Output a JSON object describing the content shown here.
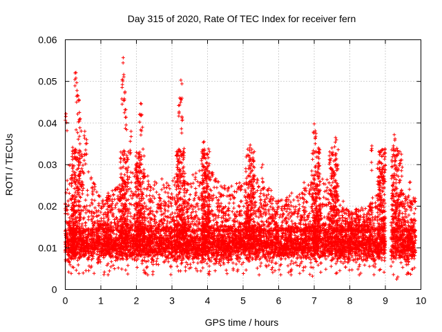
{
  "chart_data": {
    "type": "scatter",
    "title": "Day 315 of 2020, Rate Of TEC Index for receiver fern",
    "xlabel": "GPS time / hours",
    "ylabel": "ROTI / TECUs",
    "xlim": [
      0,
      10
    ],
    "ylim": [
      0,
      0.06
    ],
    "xticks": [
      "0",
      "1",
      "2",
      "3",
      "4",
      "5",
      "6",
      "7",
      "8",
      "9",
      "10"
    ],
    "yticks": [
      "0",
      "0.01",
      "0.02",
      "0.03",
      "0.04",
      "0.05",
      "0.06"
    ],
    "grid": true,
    "marker": "+",
    "color": "#ff0000",
    "data_gap_hours": [
      9.0,
      9.15
    ],
    "baseline_band": {
      "low": 0.005,
      "high": 0.016
    },
    "envelope": [
      {
        "x": 0.0,
        "upper": 0.024
      },
      {
        "x": 0.3,
        "upper": 0.04
      },
      {
        "x": 0.6,
        "upper": 0.03
      },
      {
        "x": 1.0,
        "upper": 0.022
      },
      {
        "x": 1.5,
        "upper": 0.025
      },
      {
        "x": 2.0,
        "upper": 0.03
      },
      {
        "x": 2.5,
        "upper": 0.026
      },
      {
        "x": 3.0,
        "upper": 0.028
      },
      {
        "x": 3.5,
        "upper": 0.027
      },
      {
        "x": 4.0,
        "upper": 0.03
      },
      {
        "x": 4.5,
        "upper": 0.025
      },
      {
        "x": 5.0,
        "upper": 0.026
      },
      {
        "x": 5.5,
        "upper": 0.027
      },
      {
        "x": 6.0,
        "upper": 0.022
      },
      {
        "x": 6.5,
        "upper": 0.024
      },
      {
        "x": 7.0,
        "upper": 0.028
      },
      {
        "x": 7.3,
        "upper": 0.027
      },
      {
        "x": 7.6,
        "upper": 0.024
      },
      {
        "x": 8.0,
        "upper": 0.019
      },
      {
        "x": 8.5,
        "upper": 0.02
      },
      {
        "x": 8.9,
        "upper": 0.028
      },
      {
        "x": 9.3,
        "upper": 0.025
      },
      {
        "x": 9.8,
        "upper": 0.022
      }
    ],
    "peaks": [
      {
        "x": 0.02,
        "y": 0.0422
      },
      {
        "x": 0.3,
        "y": 0.0521
      },
      {
        "x": 0.33,
        "y": 0.0478
      },
      {
        "x": 0.38,
        "y": 0.0456
      },
      {
        "x": 0.42,
        "y": 0.041
      },
      {
        "x": 0.55,
        "y": 0.038
      },
      {
        "x": 0.6,
        "y": 0.036
      },
      {
        "x": 1.63,
        "y": 0.0557
      },
      {
        "x": 1.62,
        "y": 0.0501
      },
      {
        "x": 1.68,
        "y": 0.0475
      },
      {
        "x": 1.7,
        "y": 0.0432
      },
      {
        "x": 1.85,
        "y": 0.038
      },
      {
        "x": 2.12,
        "y": 0.0447
      },
      {
        "x": 2.15,
        "y": 0.042
      },
      {
        "x": 3.25,
        "y": 0.0503
      },
      {
        "x": 3.22,
        "y": 0.046
      },
      {
        "x": 3.28,
        "y": 0.0415
      },
      {
        "x": 3.9,
        "y": 0.0355
      },
      {
        "x": 4.0,
        "y": 0.0325
      },
      {
        "x": 5.2,
        "y": 0.0347
      },
      {
        "x": 5.3,
        "y": 0.031
      },
      {
        "x": 5.55,
        "y": 0.03
      },
      {
        "x": 7.0,
        "y": 0.0398
      },
      {
        "x": 7.05,
        "y": 0.0375
      },
      {
        "x": 7.12,
        "y": 0.034
      },
      {
        "x": 7.6,
        "y": 0.0365
      },
      {
        "x": 8.62,
        "y": 0.0345
      },
      {
        "x": 8.9,
        "y": 0.0335
      },
      {
        "x": 9.25,
        "y": 0.0372
      },
      {
        "x": 9.45,
        "y": 0.0325
      },
      {
        "x": 9.7,
        "y": 0.0258
      }
    ],
    "lows": [
      {
        "x": 1.1,
        "y": 0.0042
      },
      {
        "x": 2.25,
        "y": 0.004
      },
      {
        "x": 4.55,
        "y": 0.0038
      },
      {
        "x": 6.35,
        "y": 0.0035
      },
      {
        "x": 6.95,
        "y": 0.0032
      },
      {
        "x": 9.32,
        "y": 0.0025
      },
      {
        "x": 9.35,
        "y": 0.003
      },
      {
        "x": 5.45,
        "y": 0.0035
      }
    ],
    "cluster_centers": [
      0.3,
      1.65,
      2.1,
      3.25,
      3.95,
      5.2,
      7.05,
      7.55,
      8.9,
      9.3
    ]
  }
}
